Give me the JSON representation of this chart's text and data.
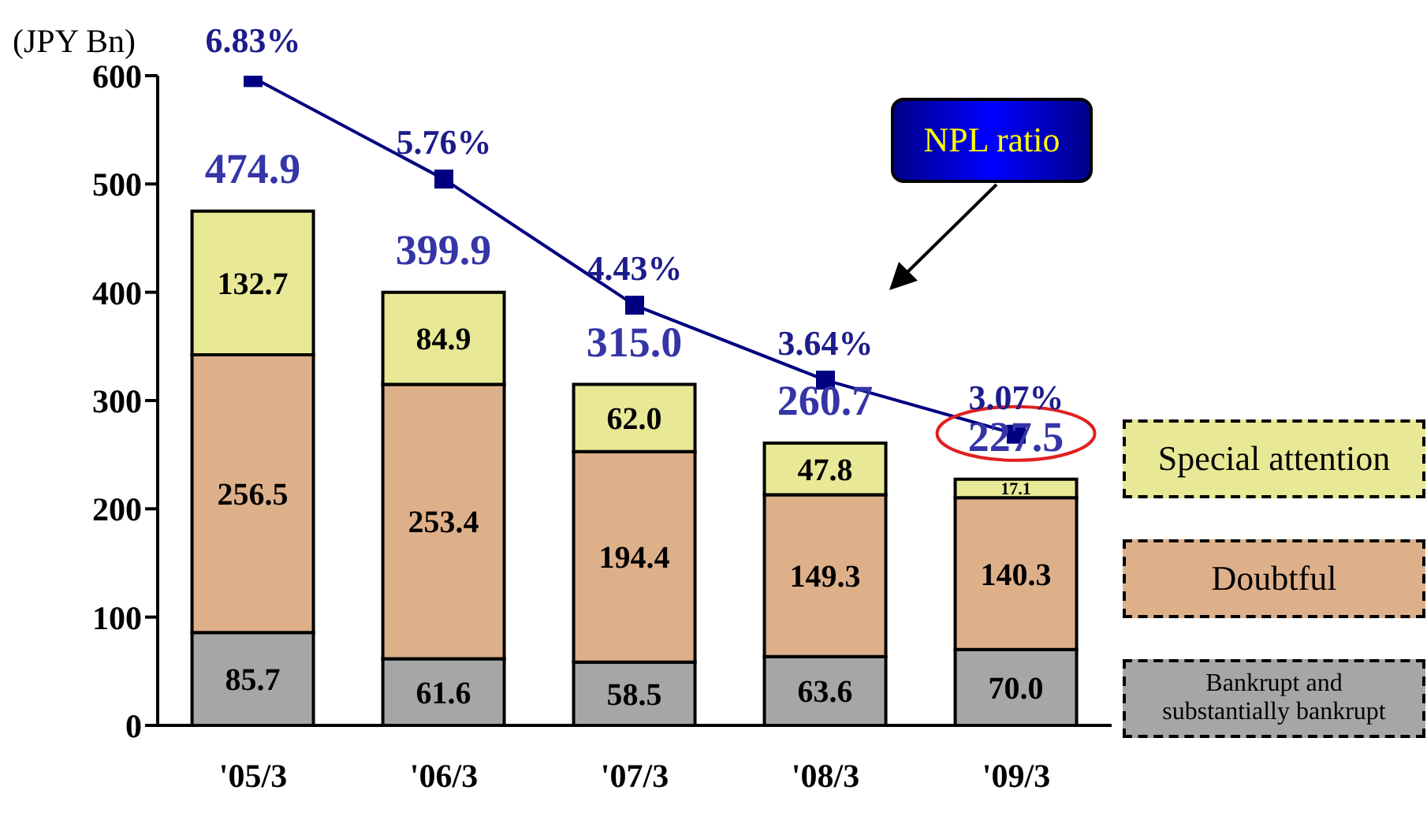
{
  "chart_data": {
    "type": "bar",
    "stacked": true,
    "ylabel": "(JPY Bn)",
    "categories": [
      "'05/3",
      "'06/3",
      "'07/3",
      "'08/3",
      "'09/3"
    ],
    "series": [
      {
        "name": "Bankrupt and substantially bankrupt",
        "color": "#a6a6a6",
        "values": [
          85.7,
          61.6,
          58.5,
          63.6,
          70.0
        ],
        "value_labels": [
          "85.7",
          "61.6",
          "58.5",
          "63.6",
          "70.0"
        ]
      },
      {
        "name": "Doubtful",
        "color": "#deb08a",
        "values": [
          256.5,
          253.4,
          194.4,
          149.3,
          140.3
        ],
        "value_labels": [
          "256.5",
          "253.4",
          "194.4",
          "149.3",
          "140.3"
        ]
      },
      {
        "name": "Special attention",
        "color": "#e8e896",
        "values": [
          132.7,
          84.9,
          62.0,
          47.8,
          17.1
        ],
        "value_labels": [
          "132.7",
          "84.9",
          "62.0",
          "47.8",
          "17.1"
        ]
      },
      {
        "name": "NPL ratio",
        "type": "line",
        "axis": "y2",
        "color": "#000080",
        "values": [
          6.83,
          5.76,
          4.43,
          3.64,
          3.07
        ],
        "value_labels": [
          "6.83%",
          "5.76%",
          "4.43%",
          "3.64%",
          "3.07%"
        ]
      }
    ],
    "totals": [
      "474.9",
      "399.9",
      "315.0",
      "260.7",
      "227.5"
    ],
    "ylim": [
      0,
      600
    ],
    "yticks": [
      0,
      100,
      200,
      300,
      400,
      500,
      600
    ],
    "y2lim": [
      0,
      6.85
    ],
    "marker": "square",
    "grid": false,
    "legend": "right"
  }
}
